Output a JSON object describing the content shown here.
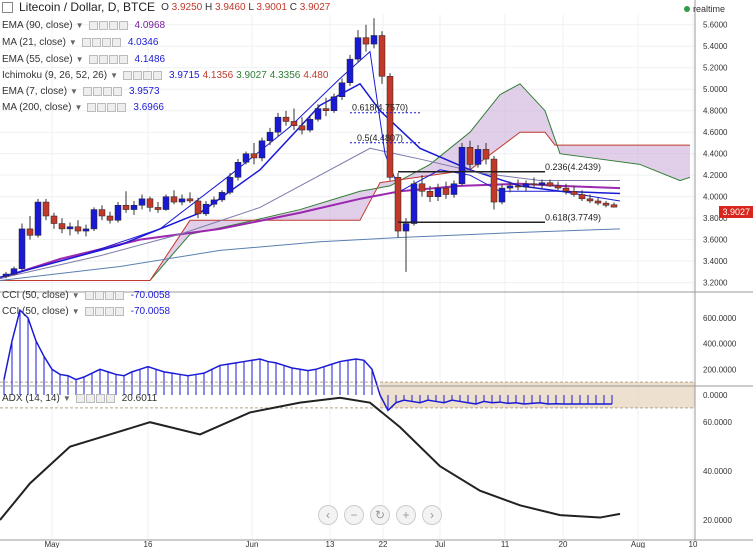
{
  "header": {
    "symbol": "Litecoin / Dollar, D, BTCE",
    "o_label": "O",
    "o_value": "3.9250",
    "h_label": "H",
    "h_value": "3.9460",
    "l_label": "L",
    "l_value": "3.9001",
    "c_label": "C",
    "c_value": "3.9027",
    "realtime": "realtime"
  },
  "legend": [
    {
      "name": "EMA (90, close)",
      "values": [
        "4.0968"
      ],
      "color": "#7b1fa2"
    },
    {
      "name": "MA (21, close)",
      "values": [
        "4.0346"
      ],
      "color": "#1a1ad6"
    },
    {
      "name": "EMA (55, close)",
      "values": [
        "4.1486"
      ],
      "color": "#1a1ad6"
    },
    {
      "name": "Ichimoku (9, 26, 52, 26)",
      "values": [
        "3.9715",
        "4.1356",
        "3.9027",
        "4.3356",
        "4.480"
      ],
      "colors": [
        "#1a1ad6",
        "#c0392b",
        "#2e7d32",
        "#2e7d32",
        "#c0392b"
      ]
    },
    {
      "name": "EMA (7, close)",
      "values": [
        "3.9573"
      ],
      "color": "#1a1ad6"
    },
    {
      "name": "MA (200, close)",
      "values": [
        "3.6966"
      ],
      "color": "#1a1ad6"
    }
  ],
  "current_price": "3.9027",
  "fib_labels": [
    "0.618(4.7570)",
    "0.5(4.4807)",
    "0.236(4.2439)",
    "0.618(3.7749)"
  ],
  "cci": [
    {
      "name": "CCI (50, close)",
      "value": "-70.0058"
    },
    {
      "name": "CCI (50, close)",
      "value": "-70.0058"
    }
  ],
  "adx": {
    "name": "ADX (14, 14)",
    "value": "20.6011"
  },
  "axes": {
    "price_ticks": [
      "5.6000",
      "5.4000",
      "5.2000",
      "5.0000",
      "4.8000",
      "4.6000",
      "4.4000",
      "4.2000",
      "4.0000",
      "3.8000",
      "3.6000",
      "3.4000",
      "3.2000"
    ],
    "cci_ticks": [
      "600.0000",
      "400.0000",
      "200.0000",
      "0.0000"
    ],
    "adx_ticks": [
      "60.0000",
      "40.0000",
      "20.0000"
    ],
    "x_ticks": [
      "May",
      "16",
      "Jun",
      "13",
      "22",
      "Jul",
      "11",
      "20",
      "Aug",
      "10"
    ]
  },
  "nav_icons": [
    "chevron-left-icon",
    "zoom-out-icon",
    "reset-icon",
    "zoom-in-icon",
    "chevron-right-icon"
  ],
  "colors": {
    "up": "#1a1ad6",
    "down": "#c0392b",
    "cloud": "#c9a8d8",
    "cci_band": "#e8d6bf"
  },
  "chart_data": {
    "type": "candlestick",
    "ylim": [
      3.15,
      5.7
    ],
    "candles": [
      [
        3.26,
        3.3,
        3.24,
        3.28
      ],
      [
        3.28,
        3.35,
        3.27,
        3.33
      ],
      [
        3.33,
        3.75,
        3.31,
        3.7
      ],
      [
        3.7,
        3.82,
        3.6,
        3.64
      ],
      [
        3.64,
        3.98,
        3.62,
        3.95
      ],
      [
        3.95,
        3.98,
        3.78,
        3.82
      ],
      [
        3.82,
        3.85,
        3.7,
        3.75
      ],
      [
        3.75,
        3.8,
        3.66,
        3.7
      ],
      [
        3.7,
        3.76,
        3.64,
        3.72
      ],
      [
        3.72,
        3.78,
        3.65,
        3.68
      ],
      [
        3.68,
        3.74,
        3.63,
        3.7
      ],
      [
        3.7,
        3.9,
        3.68,
        3.88
      ],
      [
        3.88,
        3.92,
        3.78,
        3.82
      ],
      [
        3.82,
        3.86,
        3.75,
        3.78
      ],
      [
        3.78,
        3.95,
        3.76,
        3.92
      ],
      [
        3.92,
        4.05,
        3.85,
        3.88
      ],
      [
        3.88,
        3.96,
        3.83,
        3.92
      ],
      [
        3.92,
        4.02,
        3.88,
        3.98
      ],
      [
        3.98,
        4.0,
        3.86,
        3.9
      ],
      [
        3.9,
        3.95,
        3.85,
        3.88
      ],
      [
        3.88,
        4.02,
        3.87,
        4.0
      ],
      [
        4.0,
        4.06,
        3.93,
        3.95
      ],
      [
        3.95,
        4.02,
        3.92,
        3.98
      ],
      [
        3.98,
        4.04,
        3.94,
        3.96
      ],
      [
        3.96,
        3.99,
        3.8,
        3.84
      ],
      [
        3.84,
        3.96,
        3.82,
        3.93
      ],
      [
        3.93,
        4.0,
        3.9,
        3.97
      ],
      [
        3.97,
        4.06,
        3.95,
        4.04
      ],
      [
        4.04,
        4.22,
        4.02,
        4.18
      ],
      [
        4.18,
        4.35,
        4.15,
        4.32
      ],
      [
        4.32,
        4.42,
        4.3,
        4.4
      ],
      [
        4.4,
        4.5,
        4.3,
        4.36
      ],
      [
        4.36,
        4.55,
        4.33,
        4.52
      ],
      [
        4.52,
        4.64,
        4.48,
        4.6
      ],
      [
        4.6,
        4.78,
        4.56,
        4.74
      ],
      [
        4.74,
        4.8,
        4.66,
        4.7
      ],
      [
        4.7,
        4.82,
        4.62,
        4.66
      ],
      [
        4.66,
        4.74,
        4.58,
        4.62
      ],
      [
        4.62,
        4.76,
        4.6,
        4.72
      ],
      [
        4.72,
        4.86,
        4.7,
        4.82
      ],
      [
        4.82,
        4.92,
        4.75,
        4.8
      ],
      [
        4.8,
        4.96,
        4.78,
        4.93
      ],
      [
        4.93,
        5.1,
        4.9,
        5.06
      ],
      [
        5.06,
        5.32,
        5.03,
        5.28
      ],
      [
        5.28,
        5.55,
        5.25,
        5.48
      ],
      [
        5.48,
        5.6,
        5.35,
        5.42
      ],
      [
        5.42,
        5.66,
        5.38,
        5.5
      ],
      [
        5.5,
        5.54,
        5.05,
        5.12
      ],
      [
        5.12,
        5.15,
        4.15,
        4.18
      ],
      [
        4.18,
        4.22,
        3.62,
        3.68
      ],
      [
        3.68,
        3.8,
        3.3,
        3.75
      ],
      [
        3.75,
        4.15,
        3.73,
        4.12
      ],
      [
        4.12,
        4.2,
        4.0,
        4.05
      ],
      [
        4.05,
        4.1,
        3.95,
        4.0
      ],
      [
        4.0,
        4.12,
        3.96,
        4.08
      ],
      [
        4.08,
        4.14,
        3.98,
        4.02
      ],
      [
        4.02,
        4.15,
        3.99,
        4.12
      ],
      [
        4.12,
        4.5,
        4.1,
        4.46
      ],
      [
        4.46,
        4.52,
        4.25,
        4.3
      ],
      [
        4.3,
        4.48,
        4.27,
        4.44
      ],
      [
        4.44,
        4.5,
        4.3,
        4.35
      ],
      [
        4.35,
        4.38,
        3.88,
        3.95
      ],
      [
        3.95,
        4.12,
        3.93,
        4.08
      ],
      [
        4.08,
        4.14,
        4.04,
        4.1
      ],
      [
        4.1,
        4.16,
        4.06,
        4.09
      ],
      [
        4.09,
        4.15,
        4.05,
        4.12
      ],
      [
        4.12,
        4.18,
        4.08,
        4.11
      ],
      [
        4.11,
        4.16,
        4.07,
        4.13
      ],
      [
        4.13,
        4.16,
        4.09,
        4.1
      ],
      [
        4.1,
        4.14,
        4.06,
        4.08
      ],
      [
        4.08,
        4.12,
        4.02,
        4.05
      ],
      [
        4.05,
        4.1,
        4.0,
        4.02
      ],
      [
        4.02,
        4.06,
        3.96,
        3.98
      ],
      [
        3.98,
        4.02,
        3.94,
        3.96
      ],
      [
        3.96,
        3.99,
        3.92,
        3.94
      ],
      [
        3.94,
        3.96,
        3.9,
        3.92
      ],
      [
        3.925,
        3.946,
        3.9001,
        3.9027
      ]
    ]
  }
}
